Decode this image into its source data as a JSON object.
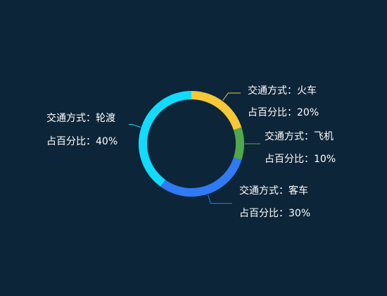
{
  "chart_data": {
    "type": "pie",
    "variant": "donut",
    "title": "",
    "start_angle_deg": 90,
    "direction": "clockwise",
    "label_templates": {
      "name_prefix": "交通方式：",
      "percent_prefix": "占百分比："
    },
    "slices": [
      {
        "name": "火车",
        "value": 20,
        "percent_label": "20%",
        "color": "#f6c736"
      },
      {
        "name": "飞机",
        "value": 10,
        "percent_label": "10%",
        "color": "#4fa84c"
      },
      {
        "name": "客车",
        "value": 30,
        "percent_label": "30%",
        "color": "#2f7bf5"
      },
      {
        "name": "轮渡",
        "value": 40,
        "percent_label": "40%",
        "color": "#11dcff"
      }
    ],
    "background": "#0d2539",
    "label_color": "#ffffff"
  }
}
